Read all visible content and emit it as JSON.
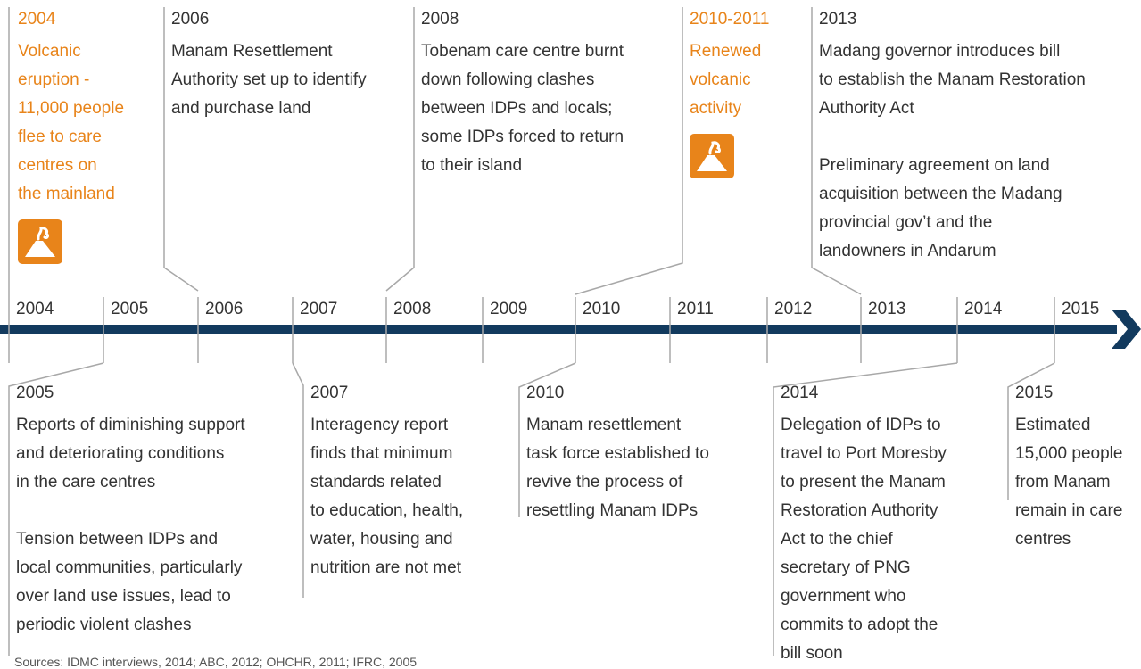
{
  "axis_labels": [
    "2004",
    "2005",
    "2006",
    "2007",
    "2008",
    "2009",
    "2010",
    "2011",
    "2012",
    "2013",
    "2014",
    "2015"
  ],
  "events_above": [
    {
      "year": "2004",
      "paragraphs": [
        [
          "Volcanic",
          "eruption -",
          "11,000 people",
          "flee to care",
          "centres on",
          "the mainland"
        ]
      ]
    },
    {
      "year": "2006",
      "paragraphs": [
        [
          "Manam Resettlement",
          "Authority set up to identify",
          "and purchase land"
        ]
      ]
    },
    {
      "year": "2008",
      "paragraphs": [
        [
          "Tobenam care centre burnt",
          "down following clashes",
          "between IDPs and locals;",
          "some IDPs forced to return",
          "to their island"
        ]
      ]
    },
    {
      "year": "2010-2011",
      "paragraphs": [
        [
          "Renewed",
          "volcanic",
          "activity"
        ]
      ]
    },
    {
      "year": "2013",
      "paragraphs": [
        [
          "Madang governor introduces bill",
          "to establish the Manam Restoration",
          "Authority Act"
        ],
        [
          "Preliminary agreement on land",
          "acquisition between the Madang",
          "provincial gov’t and the",
          "landowners in Andarum"
        ]
      ]
    }
  ],
  "events_below": [
    {
      "year": "2005",
      "paragraphs": [
        [
          "Reports of diminishing support",
          "and deteriorating conditions",
          "in the care centres"
        ],
        [
          "Tension between IDPs and",
          "local communities, particularly",
          "over land use issues, lead to",
          "periodic violent clashes"
        ]
      ]
    },
    {
      "year": "2007",
      "paragraphs": [
        [
          "Interagency report",
          "finds that minimum",
          "standards related",
          "to education, health,",
          "water, housing and",
          "nutrition are not met"
        ]
      ]
    },
    {
      "year": "2010",
      "paragraphs": [
        [
          "Manam resettlement",
          "task force established to",
          "revive the process of",
          "resettling Manam IDPs"
        ]
      ]
    },
    {
      "year": "2014",
      "paragraphs": [
        [
          "Delegation of IDPs to",
          "travel to Port Moresby",
          "to present the Manam",
          "Restoration Authority",
          "Act to the chief",
          "secretary of PNG",
          "government who",
          "commits to adopt the",
          "bill soon"
        ]
      ]
    },
    {
      "year": "2015",
      "paragraphs": [
        [
          "Estimated",
          "15,000 people",
          "from Manam",
          "remain in care",
          "centres"
        ]
      ]
    }
  ],
  "source": "Sources: IDMC interviews, 2014; ABC, 2012; OHCHR, 2011; IFRC, 2005"
}
